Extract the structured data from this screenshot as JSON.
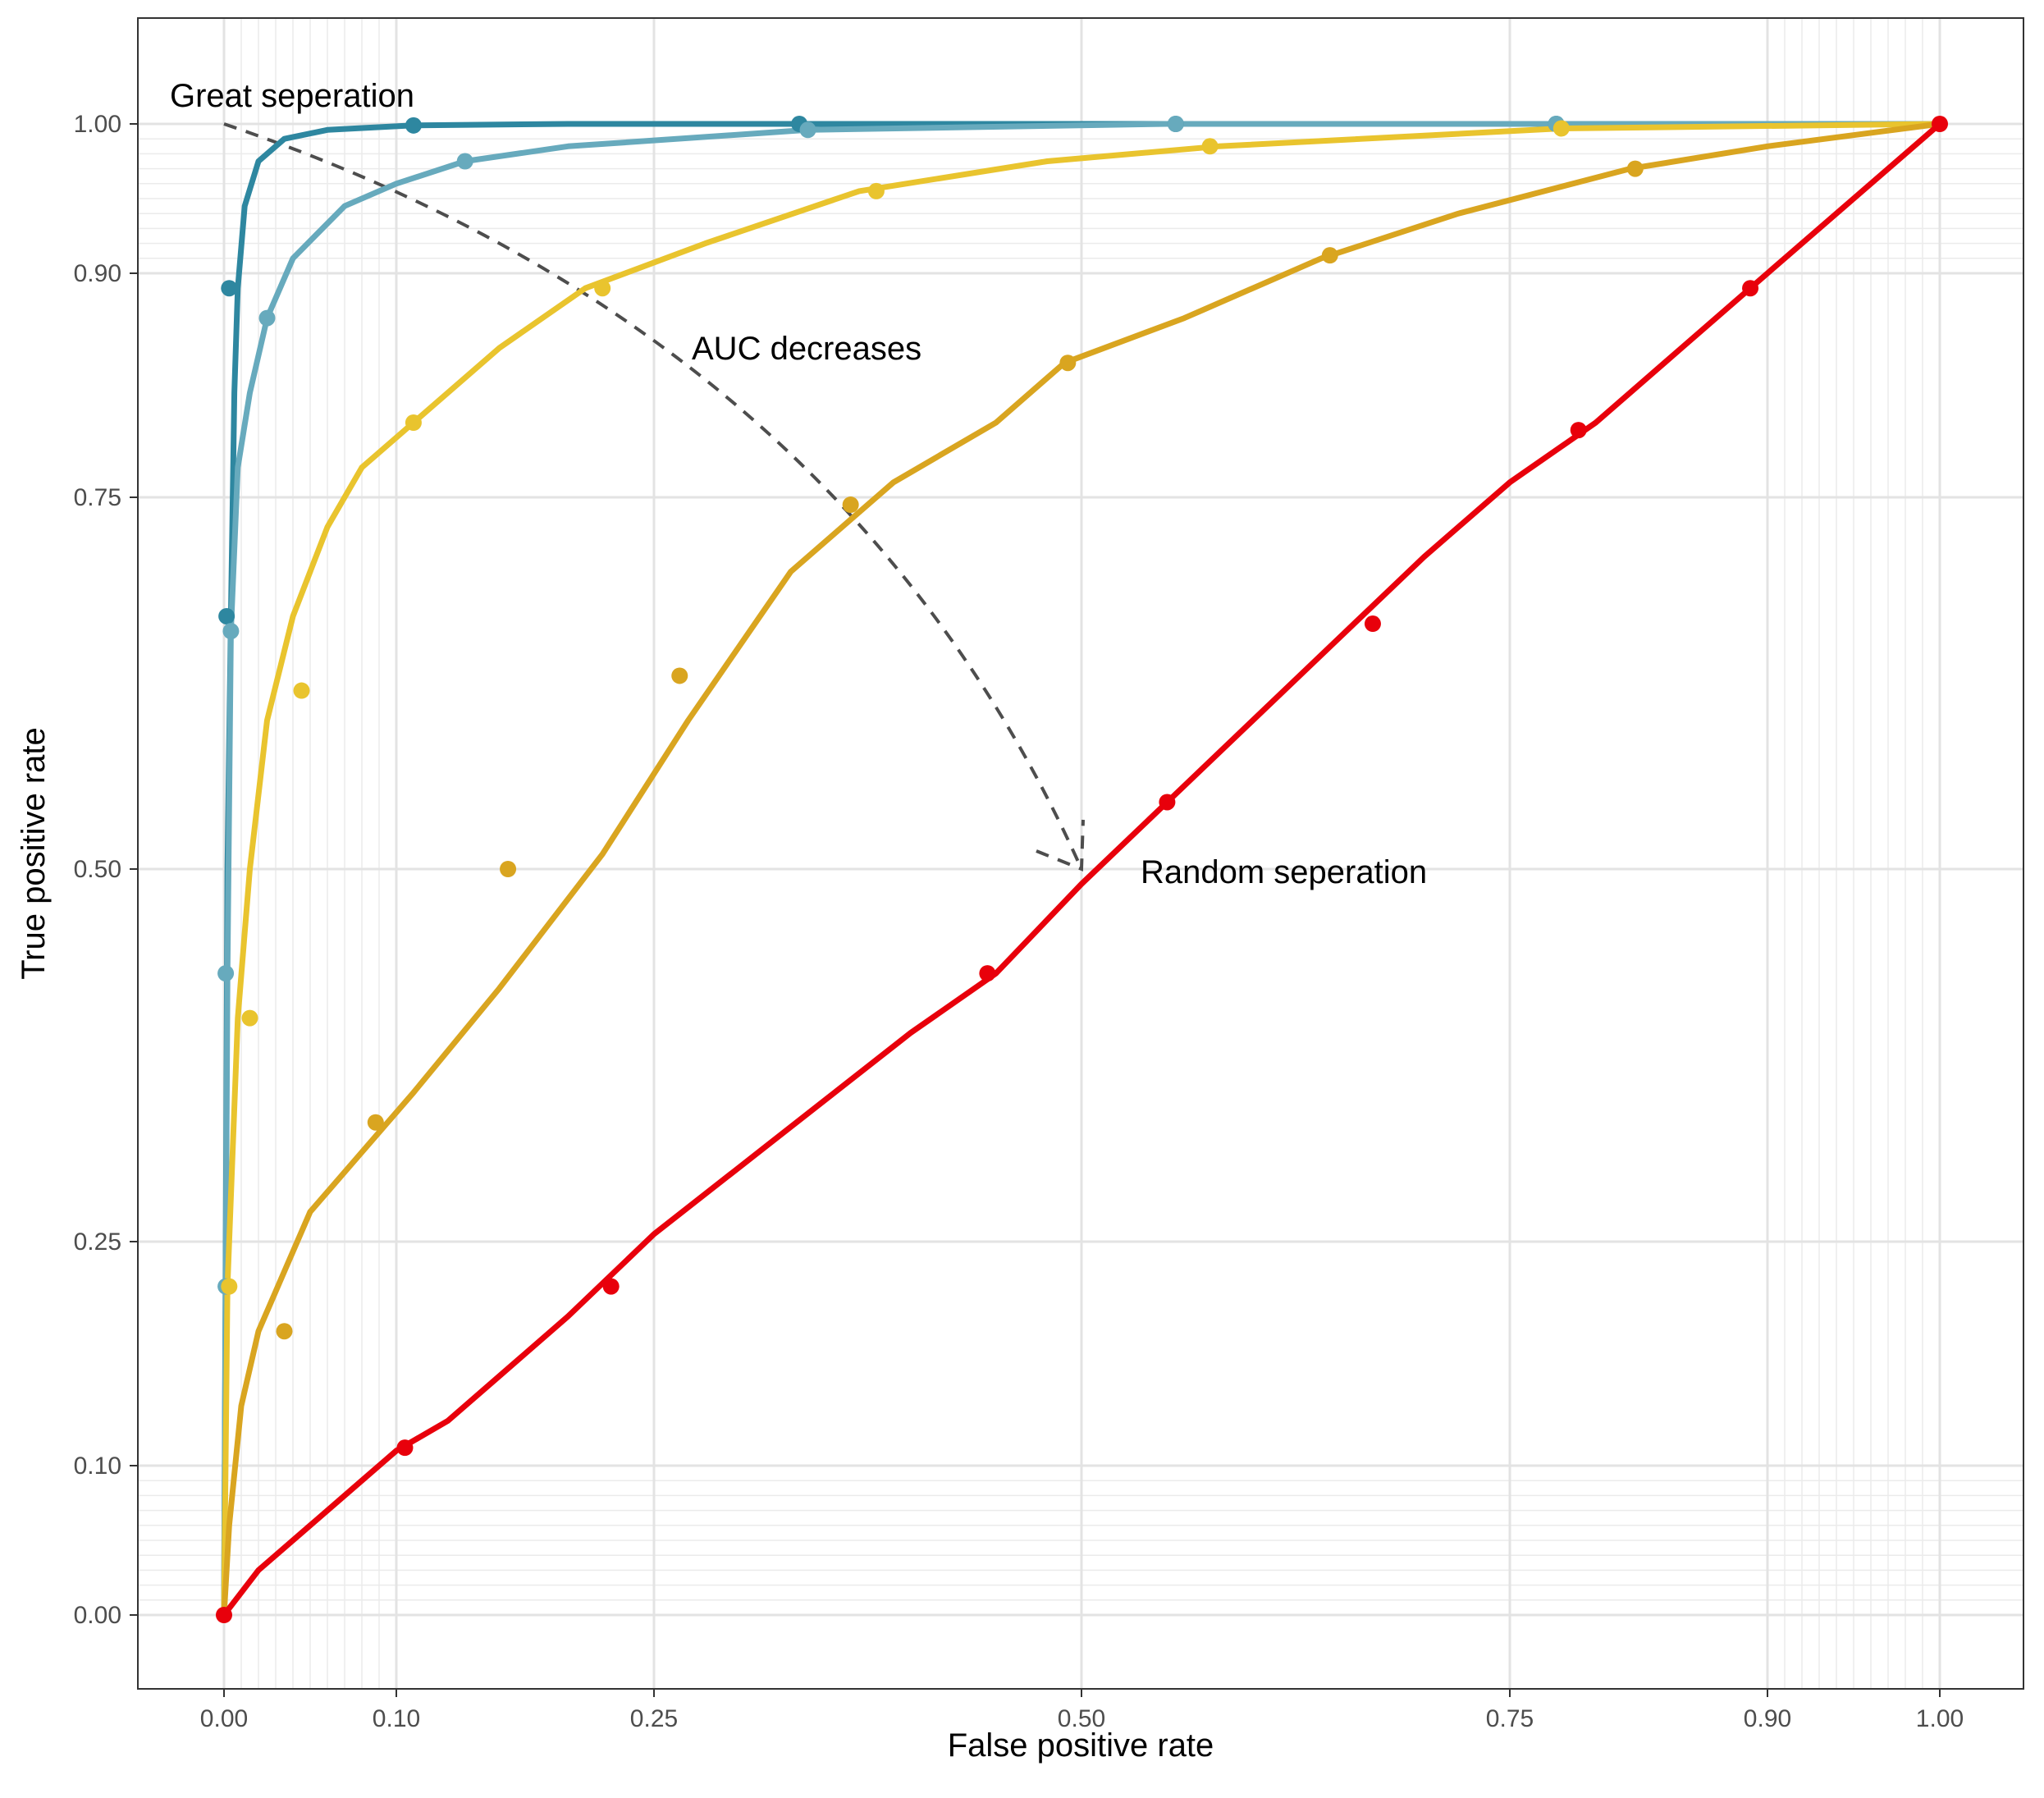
{
  "chart_data": {
    "type": "line",
    "title": "",
    "xlabel": "False positive rate",
    "ylabel": "True positive rate",
    "xlim": [
      0,
      1
    ],
    "ylim": [
      0,
      1
    ],
    "x_ticks": [
      0,
      0.1,
      0.25,
      0.5,
      0.75,
      0.9,
      1
    ],
    "x_tick_labels": [
      "0.00",
      "0.10",
      "0.25",
      "0.50",
      "0.75",
      "0.90",
      "1.00"
    ],
    "y_ticks": [
      0,
      0.1,
      0.25,
      0.5,
      0.75,
      0.9,
      1
    ],
    "y_tick_labels": [
      "0.00",
      "0.10",
      "0.25",
      "0.50",
      "0.75",
      "0.90",
      "1.00"
    ],
    "grid": true,
    "scale": "logit-like (stretched near 0 and 1)",
    "series": [
      {
        "color": "#2E87A0",
        "x": [
          0,
          0.001,
          0.002,
          0.004,
          0.006,
          0.008,
          0.012,
          0.02,
          0.035,
          0.06,
          0.11,
          0.2,
          0.33,
          0.55,
          0.78,
          1
        ],
        "y": [
          0,
          0.25,
          0.5,
          0.67,
          0.82,
          0.89,
          0.945,
          0.975,
          0.99,
          0.996,
          0.999,
          1,
          1,
          1,
          1,
          1
        ],
        "markers": [
          [
            0.0015,
            0.67
          ],
          [
            0.003,
            0.89
          ],
          [
            0.11,
            0.999
          ],
          [
            0.335,
            1
          ],
          [
            0.555,
            1
          ],
          [
            0.777,
            1
          ]
        ]
      },
      {
        "color": "#67AABD",
        "x": [
          0,
          0.001,
          0.002,
          0.004,
          0.008,
          0.015,
          0.025,
          0.04,
          0.07,
          0.1,
          0.14,
          0.2,
          0.34,
          0.55,
          0.78,
          1
        ],
        "y": [
          0,
          0.22,
          0.43,
          0.66,
          0.77,
          0.82,
          0.87,
          0.91,
          0.945,
          0.96,
          0.975,
          0.985,
          0.996,
          1,
          1,
          1
        ],
        "markers": [
          [
            0.001,
            0.22
          ],
          [
            0.001,
            0.43
          ],
          [
            0.004,
            0.66
          ],
          [
            0.025,
            0.87
          ],
          [
            0.14,
            0.975
          ],
          [
            0.34,
            0.996
          ],
          [
            0.555,
            1
          ],
          [
            0.777,
            1
          ]
        ]
      },
      {
        "color": "#E9C42E",
        "x": [
          0,
          0.002,
          0.008,
          0.015,
          0.025,
          0.04,
          0.06,
          0.08,
          0.11,
          0.16,
          0.21,
          0.28,
          0.37,
          0.48,
          0.58,
          0.78,
          1
        ],
        "y": [
          0,
          0.22,
          0.4,
          0.5,
          0.6,
          0.67,
          0.73,
          0.77,
          0.8,
          0.85,
          0.89,
          0.92,
          0.955,
          0.975,
          0.985,
          0.997,
          1
        ],
        "markers": [
          [
            0.003,
            0.22
          ],
          [
            0.015,
            0.4
          ],
          [
            0.045,
            0.62
          ],
          [
            0.11,
            0.8
          ],
          [
            0.22,
            0.89
          ],
          [
            0.38,
            0.955
          ],
          [
            0.575,
            0.985
          ],
          [
            0.78,
            0.997
          ]
        ]
      },
      {
        "color": "#D9A520",
        "x": [
          0,
          0.003,
          0.01,
          0.02,
          0.035,
          0.05,
          0.08,
          0.11,
          0.16,
          0.22,
          0.27,
          0.33,
          0.39,
          0.45,
          0.49,
          0.56,
          0.64,
          0.72,
          0.82,
          0.9,
          1
        ],
        "y": [
          0,
          0.06,
          0.14,
          0.19,
          0.23,
          0.27,
          0.31,
          0.35,
          0.42,
          0.51,
          0.6,
          0.7,
          0.76,
          0.8,
          0.84,
          0.87,
          0.91,
          0.94,
          0.97,
          0.985,
          1
        ],
        "markers": [
          [
            0.035,
            0.19
          ],
          [
            0.088,
            0.33
          ],
          [
            0.165,
            0.5
          ],
          [
            0.265,
            0.63
          ],
          [
            0.365,
            0.745
          ],
          [
            0.492,
            0.84
          ],
          [
            0.645,
            0.912
          ],
          [
            0.823,
            0.97
          ]
        ]
      },
      {
        "color": "#E8000B",
        "x": [
          0,
          0.02,
          0.05,
          0.08,
          0.1,
          0.13,
          0.16,
          0.2,
          0.25,
          0.3,
          0.35,
          0.4,
          0.45,
          0.5,
          0.55,
          0.6,
          0.65,
          0.7,
          0.75,
          0.8,
          0.85,
          0.9,
          0.95,
          1
        ],
        "y": [
          0,
          0.03,
          0.06,
          0.09,
          0.11,
          0.13,
          0.16,
          0.2,
          0.255,
          0.3,
          0.345,
          0.39,
          0.43,
          0.49,
          0.545,
          0.6,
          0.655,
          0.71,
          0.76,
          0.8,
          0.85,
          0.9,
          0.95,
          1
        ],
        "markers": [
          [
            0,
            0
          ],
          [
            0.105,
            0.112
          ],
          [
            0.225,
            0.22
          ],
          [
            0.445,
            0.43
          ],
          [
            0.55,
            0.545
          ],
          [
            0.67,
            0.665
          ],
          [
            0.79,
            0.795
          ],
          [
            0.89,
            0.89
          ],
          [
            1,
            1
          ]
        ]
      }
    ],
    "annotations": [
      {
        "label": "Great seperation",
        "x": 0,
        "y": 1
      },
      {
        "label": "AUC decreases"
      },
      {
        "label": "Random seperation",
        "x": 0.5,
        "y": 0.5
      }
    ],
    "arrow": {
      "from": [
        0,
        1
      ],
      "to": [
        0.5,
        0.5
      ],
      "style": "dashed",
      "color": "#4d4d4d"
    }
  }
}
